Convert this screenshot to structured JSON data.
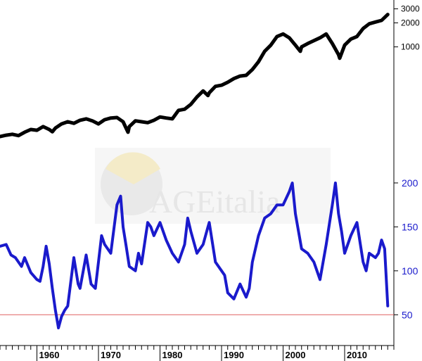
{
  "watermark": {
    "text": "AGEitalia"
  },
  "chart_data": [
    {
      "type": "line",
      "title": "",
      "scale": "log",
      "y_ticks": [
        1000,
        2000,
        3000
      ],
      "ylim": [
        60,
        3500
      ],
      "grid": false,
      "series": [
        {
          "color": "#000000",
          "x": [
            1954,
            1955,
            1956,
            1957,
            1958,
            1959,
            1960,
            1961,
            1962,
            1962.5,
            1963,
            1964,
            1965,
            1966,
            1967,
            1968,
            1969,
            1970,
            1971,
            1972,
            1973,
            1974,
            1974.8,
            1975,
            1976,
            1977,
            1978,
            1979,
            1980,
            1981,
            1982,
            1983,
            1984,
            1985,
            1986,
            1987,
            1987.8,
            1988,
            1989,
            1990,
            1991,
            1992,
            1993,
            1994,
            1995,
            1996,
            1997,
            1998,
            1999,
            2000,
            2001,
            2002,
            2002.8,
            2003,
            2004,
            2005,
            2006,
            2007,
            2008,
            2009,
            2009.2,
            2010,
            2011,
            2012,
            2013,
            2014,
            2015,
            2016,
            2017
          ],
          "y": [
            75,
            78,
            80,
            77,
            85,
            92,
            90,
            100,
            92,
            86,
            96,
            108,
            115,
            110,
            120,
            125,
            118,
            108,
            122,
            128,
            130,
            115,
            85,
            100,
            118,
            115,
            112,
            120,
            132,
            128,
            125,
            160,
            165,
            190,
            235,
            280,
            245,
            265,
            320,
            330,
            360,
            400,
            430,
            440,
            520,
            650,
            880,
            1050,
            1350,
            1450,
            1300,
            1050,
            880,
            1000,
            1100,
            1200,
            1300,
            1450,
            1100,
            800,
            720,
            1050,
            1250,
            1350,
            1700,
            1950,
            2050,
            2150,
            2550
          ]
        }
      ]
    },
    {
      "type": "line",
      "title": "",
      "y_ticks": [
        50,
        100,
        150,
        200
      ],
      "ylim": [
        15,
        240
      ],
      "xlim": [
        1954,
        2018
      ],
      "x_ticks": [
        1960,
        1970,
        1980,
        1990,
        2000,
        2010
      ],
      "reference_line": {
        "y": 50,
        "color": "#e06060"
      },
      "grid": false,
      "series": [
        {
          "color": "#1a1acc",
          "x": [
            1954,
            1955,
            1955.8,
            1956.5,
            1957.5,
            1958,
            1959,
            1960,
            1960.5,
            1961,
            1961.5,
            1962,
            1962.5,
            1963,
            1963.5,
            1964,
            1964.5,
            1965,
            1966,
            1966.7,
            1967,
            1968,
            1968.8,
            1969.5,
            1970,
            1970.5,
            1971,
            1972,
            1973,
            1973.6,
            1974,
            1974.5,
            1975,
            1976,
            1976.5,
            1977,
            1978,
            1978.5,
            1979,
            1980,
            1981,
            1982,
            1982.5,
            1983,
            1984,
            1984.5,
            1985,
            1986,
            1987,
            1987.8,
            1988,
            1989,
            1990,
            1990.5,
            1991,
            1992,
            1993,
            1994,
            1994.5,
            1995,
            1996,
            1997,
            1998,
            1999,
            2000,
            2001,
            2001.5,
            2002,
            2003,
            2004,
            2005,
            2006,
            2007,
            2008,
            2008.5,
            2009,
            2009.5,
            2010,
            2011,
            2012,
            2013,
            2013.5,
            2014,
            2015,
            2015.5,
            2016,
            2016.5,
            2017
          ],
          "y": [
            128,
            130,
            118,
            115,
            105,
            115,
            98,
            90,
            88,
            105,
            128,
            108,
            80,
            55,
            35,
            48,
            55,
            60,
            115,
            85,
            80,
            118,
            85,
            80,
            110,
            140,
            130,
            120,
            175,
            185,
            150,
            128,
            105,
            100,
            120,
            108,
            155,
            150,
            140,
            155,
            135,
            120,
            115,
            110,
            130,
            160,
            145,
            120,
            130,
            150,
            155,
            110,
            100,
            95,
            75,
            68,
            85,
            70,
            80,
            110,
            140,
            160,
            165,
            175,
            175,
            190,
            200,
            165,
            125,
            120,
            110,
            90,
            130,
            175,
            200,
            165,
            145,
            120,
            140,
            155,
            110,
            100,
            120,
            115,
            120,
            135,
            125,
            60
          ]
        }
      ]
    }
  ]
}
